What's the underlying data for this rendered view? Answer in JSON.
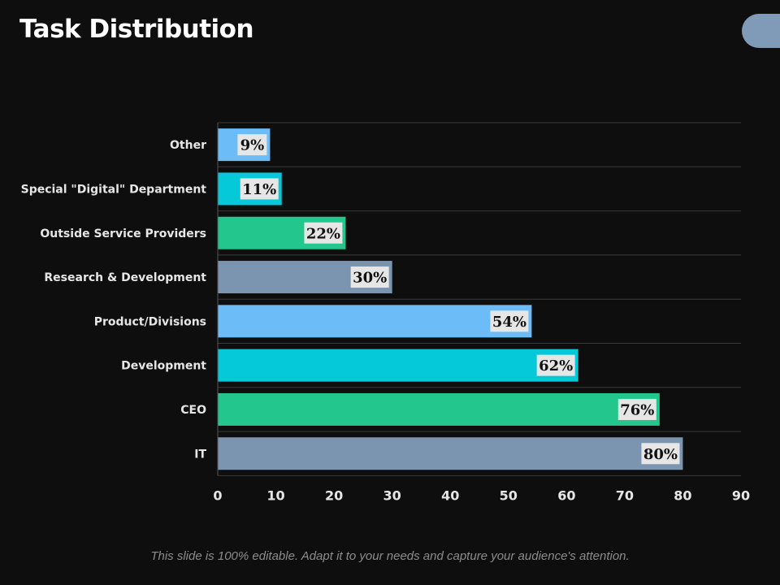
{
  "slide": {
    "title": "Task Distribution",
    "footer": "This slide is 100% editable. Adapt it to your needs and capture your audience's attention."
  },
  "colors": {
    "background": "#0e0e0e",
    "sky": "#6bbcf7",
    "cyan": "#05c8d8",
    "green": "#23c78e",
    "slate": "#7b95b0",
    "label_box": "#e6e6e6"
  },
  "chart_data": {
    "type": "bar",
    "orientation": "horizontal",
    "title": "",
    "xlabel": "",
    "ylabel": "",
    "categories": [
      "Other",
      "Special \"Digital\" Department",
      "Outside Service Providers",
      "Research & Development",
      "Product/Divisions",
      "Development",
      "CEO",
      "IT"
    ],
    "values": [
      9,
      11,
      22,
      30,
      54,
      62,
      76,
      80
    ],
    "data_labels": [
      "9%",
      "11%",
      "22%",
      "30%",
      "54%",
      "62%",
      "76%",
      "80%"
    ],
    "bar_colors": [
      "#6bbcf7",
      "#05c8d8",
      "#23c78e",
      "#7b95b0",
      "#6bbcf7",
      "#05c8d8",
      "#23c78e",
      "#7b95b0"
    ],
    "xlim": [
      0,
      90
    ],
    "xticks": [
      0,
      10,
      20,
      30,
      40,
      50,
      60,
      70,
      80,
      90
    ],
    "grid": "horizontal",
    "legend": "none"
  }
}
